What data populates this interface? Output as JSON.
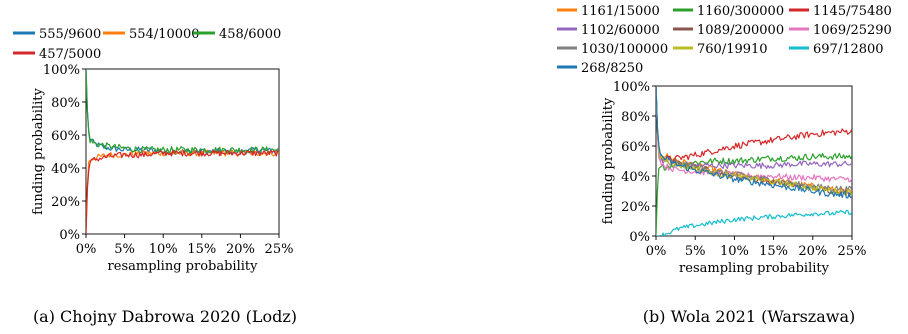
{
  "chart_data": [
    {
      "type": "line",
      "caption": "(a) Chojny Dabrowa 2020 (Lodz)",
      "xlabel": "resampling probability",
      "ylabel": "funding probability",
      "xlim": [
        0,
        25
      ],
      "ylim": [
        0,
        100
      ],
      "xticks": [
        "0%",
        "5%",
        "10%",
        "15%",
        "20%",
        "25%"
      ],
      "yticks": [
        "0%",
        "20%",
        "40%",
        "60%",
        "80%",
        "100%"
      ],
      "grid": false,
      "legend_position": "top",
      "x": [
        0,
        0.25,
        0.5,
        1,
        2,
        3,
        5,
        7.5,
        10,
        12.5,
        15,
        17.5,
        20,
        22.5,
        25
      ],
      "series": [
        {
          "name": "555/9600",
          "color": "#1f77b4",
          "values": [
            100,
            65,
            58,
            55,
            53,
            52,
            51,
            51,
            50,
            50,
            50,
            50,
            50,
            51,
            50
          ],
          "noise": 1.8
        },
        {
          "name": "554/10000",
          "color": "#ff7f0e",
          "values": [
            0,
            42,
            45,
            46,
            47,
            48,
            48,
            49,
            49,
            49,
            49,
            49,
            49,
            49,
            49
          ],
          "noise": 1.8
        },
        {
          "name": "458/6000",
          "color": "#2ca02c",
          "values": [
            100,
            64,
            57,
            55,
            54,
            53,
            52,
            51,
            51,
            51,
            51,
            51,
            51,
            51,
            51
          ],
          "noise": 2.0
        },
        {
          "name": "457/5000",
          "color": "#d62728",
          "values": [
            0,
            38,
            43,
            45,
            46,
            47,
            48,
            48,
            49,
            49,
            49,
            49,
            49,
            49,
            49
          ],
          "noise": 1.8
        }
      ]
    },
    {
      "type": "line",
      "caption": "(b) Wola 2021 (Warszawa)",
      "xlabel": "resampling probability",
      "ylabel": "funding probability",
      "xlim": [
        0,
        25
      ],
      "ylim": [
        0,
        100
      ],
      "xticks": [
        "0%",
        "5%",
        "10%",
        "15%",
        "20%",
        "25%"
      ],
      "yticks": [
        "0%",
        "20%",
        "40%",
        "60%",
        "80%",
        "100%"
      ],
      "grid": false,
      "legend_position": "top",
      "x": [
        0,
        0.25,
        0.5,
        1,
        2,
        3,
        5,
        7.5,
        10,
        12.5,
        15,
        17.5,
        20,
        22.5,
        25
      ],
      "series": [
        {
          "name": "1161/15000",
          "color": "#ff7f0e",
          "values": [
            100,
            62,
            56,
            54,
            52,
            50,
            47,
            44,
            41,
            39,
            37,
            35,
            33,
            31,
            29
          ],
          "noise": 2.2
        },
        {
          "name": "1160/300000",
          "color": "#2ca02c",
          "values": [
            0,
            42,
            45,
            46,
            47,
            48,
            49,
            50,
            50,
            51,
            52,
            52,
            53,
            53,
            53
          ],
          "noise": 2.2
        },
        {
          "name": "1145/75480",
          "color": "#d62728",
          "values": [
            100,
            58,
            54,
            52,
            51,
            52,
            54,
            57,
            60,
            62,
            64,
            66,
            68,
            69,
            70
          ],
          "noise": 2.2
        },
        {
          "name": "1102/60000",
          "color": "#9467bd",
          "values": [
            100,
            58,
            52,
            50,
            48,
            47,
            47,
            47,
            47,
            47,
            47,
            48,
            48,
            48,
            48
          ],
          "noise": 2.0
        },
        {
          "name": "1089/200000",
          "color": "#8c564b",
          "values": [
            100,
            60,
            54,
            52,
            50,
            48,
            46,
            43,
            40,
            38,
            36,
            34,
            32,
            30,
            28
          ],
          "noise": 2.0
        },
        {
          "name": "1069/25290",
          "color": "#e377c2",
          "values": [
            100,
            57,
            50,
            47,
            45,
            44,
            43,
            42,
            41,
            40,
            40,
            39,
            39,
            38,
            38
          ],
          "noise": 2.0
        },
        {
          "name": "1030/100000",
          "color": "#7f7f7f",
          "values": [
            100,
            60,
            54,
            51,
            49,
            48,
            46,
            43,
            41,
            39,
            37,
            35,
            33,
            32,
            31
          ],
          "noise": 2.0
        },
        {
          "name": "760/19910",
          "color": "#bcbd22",
          "values": [
            100,
            59,
            53,
            51,
            49,
            47,
            45,
            42,
            40,
            38,
            36,
            34,
            32,
            30,
            29
          ],
          "noise": 2.0
        },
        {
          "name": "697/12800",
          "color": "#17becf",
          "values": [
            0,
            0,
            0,
            1,
            3,
            5,
            7,
            9,
            11,
            12,
            13,
            14,
            15,
            15,
            16
          ],
          "noise": 1.6
        },
        {
          "name": "268/8250",
          "color": "#1f77b4",
          "values": [
            100,
            62,
            55,
            52,
            49,
            47,
            44,
            41,
            38,
            36,
            34,
            32,
            30,
            28,
            27
          ],
          "noise": 2.2
        }
      ]
    }
  ]
}
